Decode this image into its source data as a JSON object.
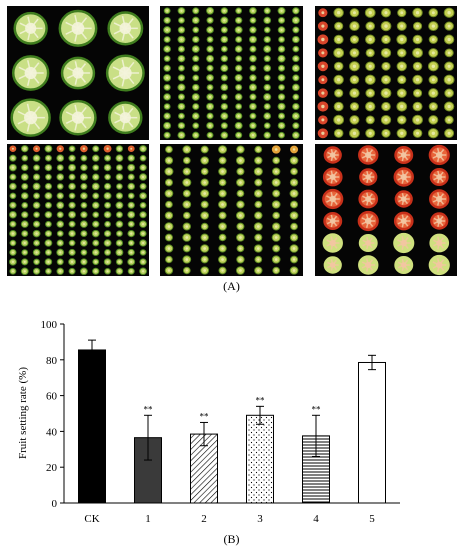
{
  "figure": {
    "panel_a_label": "(A)",
    "panel_b_label": "(B)"
  },
  "photos": [
    {
      "id": "photo-1",
      "rows": 3,
      "cols": 3,
      "fill": "#c9df86",
      "rim": "#3f7d1e",
      "seeds": "#f4f4dc"
    },
    {
      "id": "photo-2",
      "rows": 14,
      "cols": 10,
      "fill": "#b7d35a",
      "rim": "#4e8a22",
      "seeds": "#e9f0b0"
    },
    {
      "id": "photo-3",
      "rows": 10,
      "cols": 9,
      "fill": "#c5cf52",
      "rim": "#6e8a20",
      "seeds": "#eef0b8",
      "accent": "#d8452a"
    },
    {
      "id": "photo-4",
      "rows": 14,
      "cols": 12,
      "fill": "#b9d061",
      "rim": "#4e8a22",
      "seeds": "#e9f0b0",
      "accent": "#e0602e"
    },
    {
      "id": "photo-5",
      "rows": 12,
      "cols": 8,
      "fill": "#c2d35e",
      "rim": "#5d8c22",
      "seeds": "#eef0b8",
      "accent": "#e4a33a"
    },
    {
      "id": "photo-6",
      "rows": 6,
      "cols": 4,
      "fill": "#e8643a",
      "rim": "#c8301a",
      "seeds": "#f3c6a2",
      "accent": "#cfe07e"
    }
  ],
  "chart_data": {
    "type": "bar",
    "categories": [
      "CK",
      "1",
      "2",
      "3",
      "4",
      "5"
    ],
    "values": [
      85.5,
      36.5,
      38.5,
      49,
      37.5,
      78.5
    ],
    "errors": [
      5.5,
      12.5,
      6.5,
      5,
      11.5,
      4
    ],
    "significance": [
      "",
      "**",
      "**",
      "**",
      "**",
      ""
    ],
    "fills": [
      "solid-black",
      "solid-dark-gray",
      "diagonal-hatch",
      "dots",
      "horizontal-lines",
      "white"
    ],
    "xlabel": "",
    "ylabel": "Fruit setting rate (%)",
    "ylim": [
      0,
      100
    ],
    "yticks": [
      0,
      20,
      40,
      60,
      80,
      100
    ],
    "grid": false,
    "colors": {
      "bar_edge": "#000000",
      "dark_gray": "#3a3a3a"
    }
  }
}
